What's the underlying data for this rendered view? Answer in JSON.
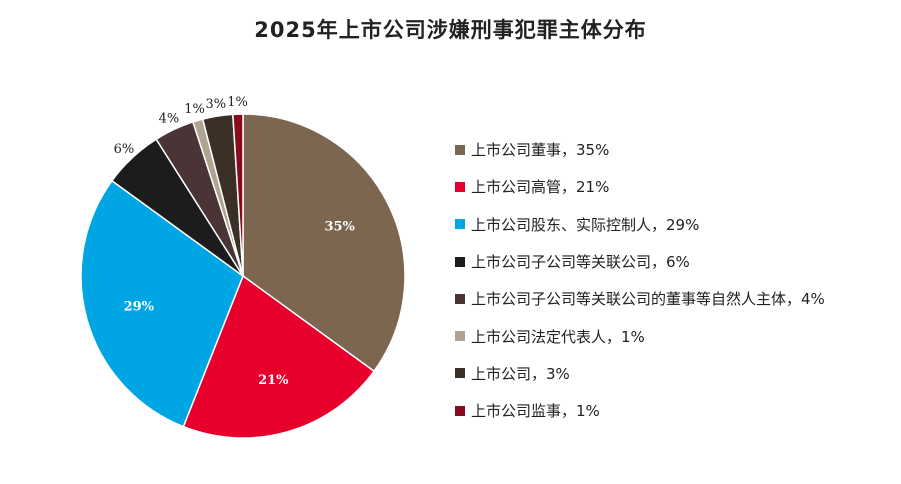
{
  "chart_data": {
    "type": "pie",
    "title": "2025年上市公司涉嫌刑事犯罪主体分布",
    "legend_position": "right",
    "slices": [
      {
        "label": "上市公司董事",
        "value": 35,
        "display": "35%",
        "legend": "上市公司董事，35%",
        "color": "#7d6650",
        "label_color": "#ffffff"
      },
      {
        "label": "上市公司高管",
        "value": 21,
        "display": "21%",
        "legend": "上市公司高管，21%",
        "color": "#e8002d",
        "label_color": "#ffffff"
      },
      {
        "label": "上市公司股东、实际控制人",
        "value": 29,
        "display": "29%",
        "legend": "上市公司股东、实际控制人，29%",
        "color": "#00a5e3",
        "label_color": "#ffffff"
      },
      {
        "label": "上市公司子公司等关联公司",
        "value": 6,
        "display": "6%",
        "legend": "上市公司子公司等关联公司，6%",
        "color": "#1c1c1c",
        "label_color": "#222222"
      },
      {
        "label": "上市公司子公司等关联公司的董事等自然人主体",
        "value": 4,
        "display": "4%",
        "legend": "上市公司子公司等关联公司的董事等自然人主体，4%",
        "color": "#4a3436",
        "label_color": "#222222"
      },
      {
        "label": "上市公司法定代表人",
        "value": 1,
        "display": "1%",
        "legend": "上市公司法定代表人，1%",
        "color": "#b0a390",
        "label_color": "#222222"
      },
      {
        "label": "上市公司",
        "value": 3,
        "display": "3%",
        "legend": "上市公司，3%",
        "color": "#3b3026",
        "label_color": "#222222"
      },
      {
        "label": "上市公司监事",
        "value": 1,
        "display": "1%",
        "legend": "上市公司监事，1%",
        "color": "#8a0a1e",
        "label_color": "#222222"
      }
    ]
  }
}
